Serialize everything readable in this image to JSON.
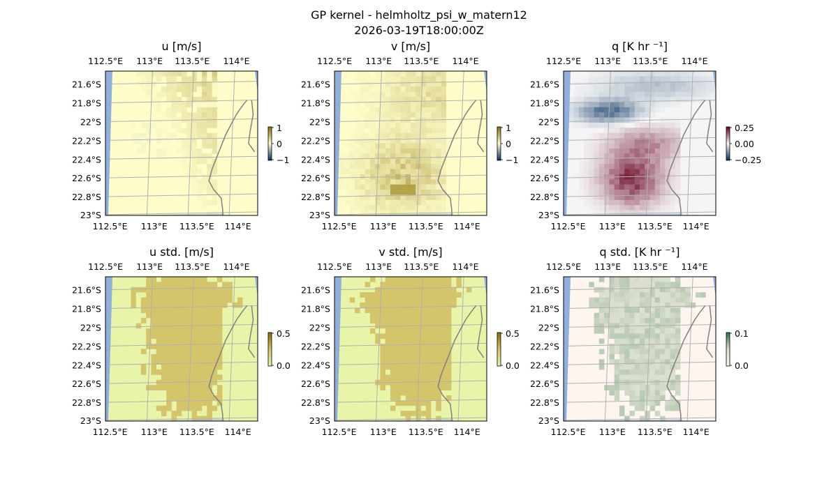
{
  "figure": {
    "title_line1": "GP kernel - helmholtz_psi_w_matern12",
    "title_line2": "2026-03-19T18:00:00Z"
  },
  "colors": {
    "gridline": "#b0b0b0",
    "coastline": "#808080",
    "ocean_edge": "#8fb0dc",
    "frame": "#000000"
  },
  "chart_data": [
    {
      "type": "heatmap",
      "title": "u [m/s]",
      "xticks": [
        "112.5°E",
        "113°E",
        "113.5°E",
        "114°E"
      ],
      "yticks": [
        "21.6°S",
        "21.8°S",
        "22°S",
        "22.2°S",
        "22.4°S",
        "22.6°S",
        "22.8°S",
        "23°S"
      ],
      "lon_range": [
        112.5,
        114.2
      ],
      "lat_range": [
        -23.0,
        -21.45
      ],
      "colorbar": {
        "ticks": [
          "1",
          "0",
          "−1"
        ],
        "range": [
          -1,
          1
        ],
        "colors": [
          "#08306b",
          "#ffffcc",
          "#8c6d00"
        ]
      },
      "background": "#fffecb",
      "field": "u",
      "grid": true
    },
    {
      "type": "heatmap",
      "title": "v [m/s]",
      "xticks": [
        "112.5°E",
        "113°E",
        "113.5°E",
        "114°E"
      ],
      "yticks": [
        "21.6°S",
        "21.8°S",
        "22°S",
        "22.2°S",
        "22.4°S",
        "22.6°S",
        "22.8°S",
        "23°S"
      ],
      "lon_range": [
        112.5,
        114.2
      ],
      "lat_range": [
        -23.0,
        -21.45
      ],
      "colorbar": {
        "ticks": [
          "1",
          "0",
          "−1"
        ],
        "range": [
          -1,
          1
        ],
        "colors": [
          "#08306b",
          "#ffffcc",
          "#8c6d00"
        ]
      },
      "background": "#fffecb",
      "field": "v",
      "grid": true
    },
    {
      "type": "heatmap",
      "title": "q [K hr ⁻¹]",
      "xticks": [
        "112.5°E",
        "113°E",
        "113.5°E",
        "114°E"
      ],
      "yticks": [
        "21.6°S",
        "21.8°S",
        "22°S",
        "22.2°S",
        "22.4°S",
        "22.6°S",
        "22.8°S",
        "23°S"
      ],
      "lon_range": [
        112.5,
        114.2
      ],
      "lat_range": [
        -23.0,
        -21.45
      ],
      "colorbar": {
        "ticks": [
          "0.25",
          "0.00",
          "−0.25"
        ],
        "range": [
          -0.35,
          0.35
        ],
        "colors": [
          "#053061",
          "#f7f7f7",
          "#67001f"
        ]
      },
      "background": "#f5f5f5",
      "field": "q",
      "grid": true
    },
    {
      "type": "heatmap",
      "title": "u std. [m/s]",
      "xticks": [
        "112.5°E",
        "113°E",
        "113.5°E",
        "114°E"
      ],
      "yticks": [
        "21.6°S",
        "21.8°S",
        "22°S",
        "22.2°S",
        "22.4°S",
        "22.6°S",
        "22.8°S",
        "23°S"
      ],
      "lon_range": [
        112.5,
        114.2
      ],
      "lat_range": [
        -23.0,
        -21.45
      ],
      "colorbar": {
        "ticks": [
          "0.5",
          "0.0"
        ],
        "range": [
          0,
          0.5
        ],
        "colors": [
          "#e8f5a8",
          "#d4c46a",
          "#8c6d00"
        ]
      },
      "background": "#e8f5a8",
      "field": "std",
      "grid": true
    },
    {
      "type": "heatmap",
      "title": "v std. [m/s]",
      "xticks": [
        "112.5°E",
        "113°E",
        "113.5°E",
        "114°E"
      ],
      "yticks": [
        "21.6°S",
        "21.8°S",
        "22°S",
        "22.2°S",
        "22.4°S",
        "22.6°S",
        "22.8°S",
        "23°S"
      ],
      "lon_range": [
        112.5,
        114.2
      ],
      "lat_range": [
        -23.0,
        -21.45
      ],
      "colorbar": {
        "ticks": [
          "0.5",
          "0.0"
        ],
        "range": [
          0,
          0.5
        ],
        "colors": [
          "#e8f5a8",
          "#d4c46a",
          "#8c6d00"
        ]
      },
      "background": "#e8f5a8",
      "field": "std",
      "grid": true
    },
    {
      "type": "heatmap",
      "title": "q std. [K hr ⁻¹]",
      "xticks": [
        "112.5°E",
        "113°E",
        "113.5°E",
        "114°E"
      ],
      "yticks": [
        "21.6°S",
        "21.8°S",
        "22°S",
        "22.2°S",
        "22.4°S",
        "22.6°S",
        "22.8°S",
        "23°S"
      ],
      "lon_range": [
        112.5,
        114.2
      ],
      "lat_range": [
        -23.0,
        -21.45
      ],
      "colorbar": {
        "ticks": [
          "0.1",
          "0.0"
        ],
        "range": [
          0,
          0.15
        ],
        "colors": [
          "#fff5f0",
          "#d9dfcc",
          "#2f6f4f"
        ]
      },
      "background": "#fff5f0",
      "field": "qstd",
      "grid": true
    }
  ]
}
